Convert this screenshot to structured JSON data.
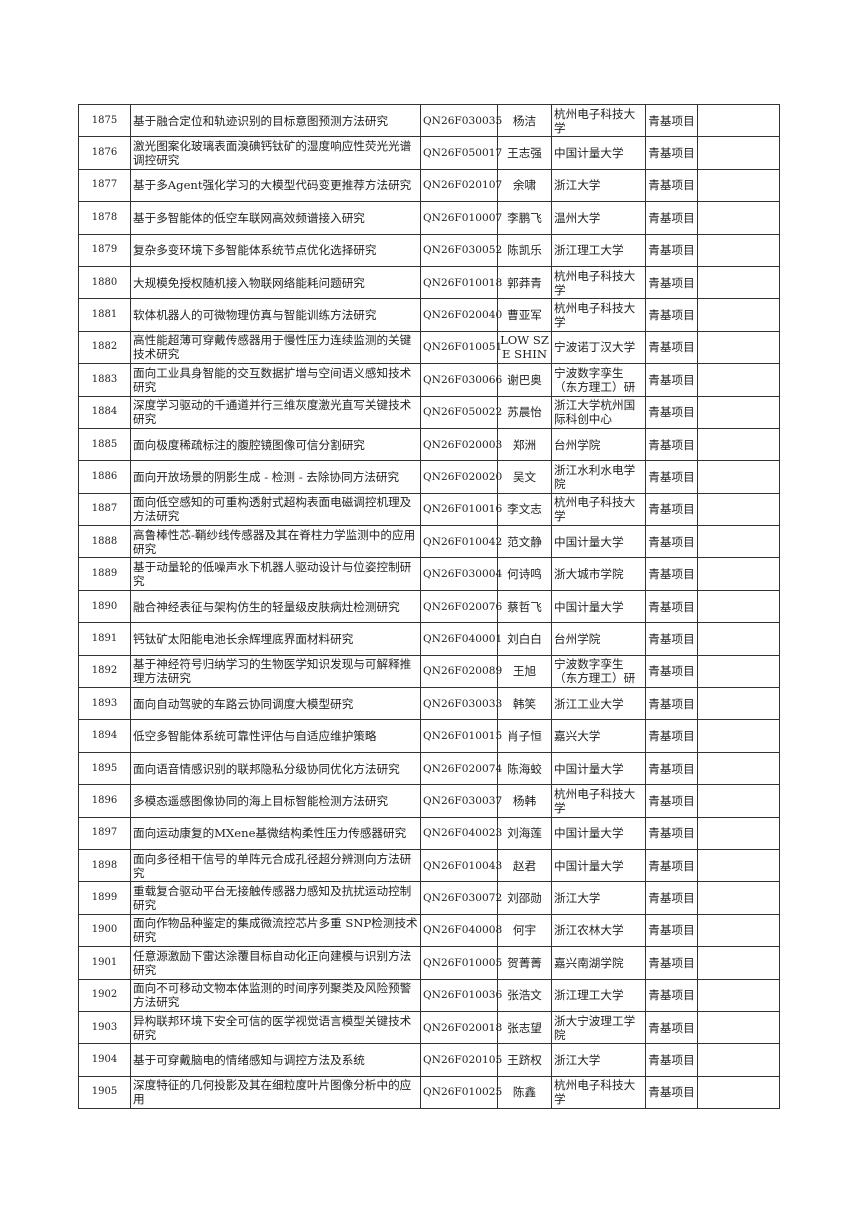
{
  "rows": [
    [
      "1875",
      "基于融合定位和轨迹识别的目标意图预测方法研究",
      "QN26F030035",
      "杨洁",
      "杭州电子科技大学",
      "青基项目",
      ""
    ],
    [
      "1876",
      "激光图案化玻璃表面溴碘钙钛矿的湿度响应性荧光光谱调控研究",
      "QN26F050017",
      "王志强",
      "中国计量大学",
      "青基项目",
      ""
    ],
    [
      "1877",
      "基于多Agent强化学习的大模型代码变更推荐方法研究",
      "QN26F020107",
      "余啸",
      "浙江大学",
      "青基项目",
      ""
    ],
    [
      "1878",
      "基于多智能体的低空车联网高效频谱接入研究",
      "QN26F010007",
      "李鹏飞",
      "温州大学",
      "青基项目",
      ""
    ],
    [
      "1879",
      "复杂多变环境下多智能体系统节点优化选择研究",
      "QN26F030052",
      "陈凯乐",
      "浙江理工大学",
      "青基项目",
      ""
    ],
    [
      "1880",
      "大规模免授权随机接入物联网络能耗问题研究",
      "QN26F010018",
      "郭莽青",
      "杭州电子科技大学",
      "青基项目",
      ""
    ],
    [
      "1881",
      "软体机器人的可微物理仿真与智能训练方法研究",
      "QN26F020040",
      "曹亚军",
      "杭州电子科技大学",
      "青基项目",
      ""
    ],
    [
      "1882",
      "高性能超薄可穿戴传感器用于慢性压力连续监测的关键技术研究",
      "QN26F010051",
      "LOW SZE SHIN",
      "宁波诺丁汉大学",
      "青基项目",
      ""
    ],
    [
      "1883",
      "面向工业具身智能的交互数据扩增与空间语义感知技术研究",
      "QN26F030066",
      "谢巴奥",
      "宁波数字孪生（东方理工）研",
      "青基项目",
      ""
    ],
    [
      "1884",
      "深度学习驱动的千通道并行三维灰度激光直写关键技术研究",
      "QN26F050022",
      "苏晨怡",
      "浙江大学杭州国际科创中心",
      "青基项目",
      ""
    ],
    [
      "1885",
      "面向极度稀疏标注的腹腔镜图像可信分割研究",
      "QN26F020003",
      "郑洲",
      "台州学院",
      "青基项目",
      ""
    ],
    [
      "1886",
      "面向开放场景的阴影生成 - 检测 - 去除协同方法研究",
      "QN26F020020",
      "吴文",
      "浙江水利水电学院",
      "青基项目",
      ""
    ],
    [
      "1887",
      "面向低空感知的可重构透射式超构表面电磁调控机理及方法研究",
      "QN26F010016",
      "李文志",
      "杭州电子科技大学",
      "青基项目",
      ""
    ],
    [
      "1888",
      "高鲁棒性芯-鞘纱线传感器及其在脊柱力学监测中的应用研究",
      "QN26F010042",
      "范文静",
      "中国计量大学",
      "青基项目",
      ""
    ],
    [
      "1889",
      "基于动量轮的低噪声水下机器人驱动设计与位姿控制研究",
      "QN26F030004",
      "何诗鸣",
      "浙大城市学院",
      "青基项目",
      ""
    ],
    [
      "1890",
      "融合神经表征与架构仿生的轻量级皮肤病灶检测研究",
      "QN26F020076",
      "蔡哲飞",
      "中国计量大学",
      "青基项目",
      ""
    ],
    [
      "1891",
      "钙钛矿太阳能电池长余辉埋底界面材料研究",
      "QN26F040001",
      "刘白白",
      "台州学院",
      "青基项目",
      ""
    ],
    [
      "1892",
      "基于神经符号归纳学习的生物医学知识发现与可解释推理方法研究",
      "QN26F020089",
      "王旭",
      "宁波数字孪生（东方理工）研",
      "青基项目",
      ""
    ],
    [
      "1893",
      "面向自动驾驶的车路云协同调度大模型研究",
      "QN26F030033",
      "韩笑",
      "浙江工业大学",
      "青基项目",
      ""
    ],
    [
      "1894",
      "低空多智能体系统可靠性评估与自适应维护策略",
      "QN26F010015",
      "肖子恒",
      "嘉兴大学",
      "青基项目",
      ""
    ],
    [
      "1895",
      "面向语音情感识别的联邦隐私分级协同优化方法研究",
      "QN26F020074",
      "陈海蛟",
      "中国计量大学",
      "青基项目",
      ""
    ],
    [
      "1896",
      "多模态遥感图像协同的海上目标智能检测方法研究",
      "QN26F030037",
      "杨韩",
      "杭州电子科技大学",
      "青基项目",
      ""
    ],
    [
      "1897",
      "面向运动康复的MXene基微结构柔性压力传感器研究",
      "QN26F040023",
      "刘海莲",
      "中国计量大学",
      "青基项目",
      ""
    ],
    [
      "1898",
      "面向多径相干信号的单阵元合成孔径超分辨测向方法研究",
      "QN26F010043",
      "赵君",
      "中国计量大学",
      "青基项目",
      ""
    ],
    [
      "1899",
      "重载复合驱动平台无接触传感器力感知及抗扰运动控制研究",
      "QN26F030072",
      "刘邵勋",
      "浙江大学",
      "青基项目",
      ""
    ],
    [
      "1900",
      "面向作物品种鉴定的集成微流控芯片多重 SNP检测技术研究",
      "QN26F040008",
      "何宇",
      "浙江农林大学",
      "青基项目",
      ""
    ],
    [
      "1901",
      "任意源激励下雷达涂覆目标自动化正向建模与识别方法研究",
      "QN26F010005",
      "贺菁菁",
      "嘉兴南湖学院",
      "青基项目",
      ""
    ],
    [
      "1902",
      "面向不可移动文物本体监测的时间序列聚类及风险预警方法研究",
      "QN26F010036",
      "张浩文",
      "浙江理工大学",
      "青基项目",
      ""
    ],
    [
      "1903",
      "异构联邦环境下安全可信的医学视觉语言模型关键技术研究",
      "QN26F020018",
      "张志望",
      "浙大宁波理工学院",
      "青基项目",
      ""
    ],
    [
      "1904",
      "基于可穿戴脑电的情绪感知与调控方法及系统",
      "QN26F020105",
      "王跻权",
      "浙江大学",
      "青基项目",
      ""
    ],
    [
      "1905",
      "深度特征的几何投影及其在细粒度叶片图像分析中的应用",
      "QN26F010025",
      "陈鑫",
      "杭州电子科技大学",
      "青基项目",
      ""
    ]
  ]
}
